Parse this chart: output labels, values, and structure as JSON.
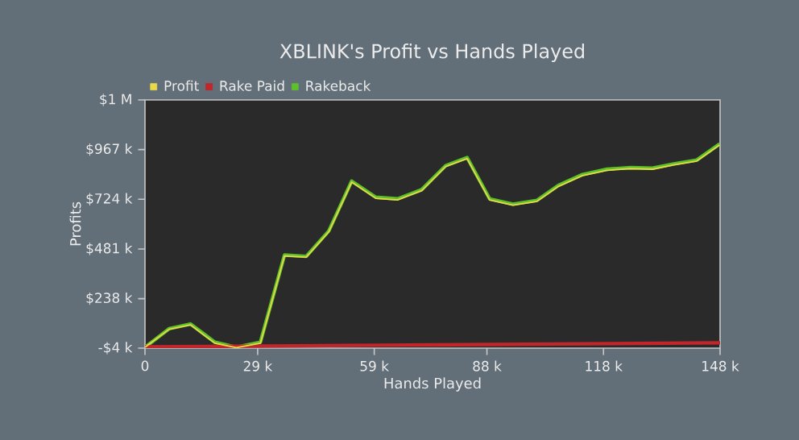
{
  "chart_data": {
    "type": "line",
    "title": "XBLINK's Profit vs Hands Played",
    "xlabel": "Hands Played",
    "ylabel": "Profits",
    "xlim": [
      0,
      148000
    ],
    "ylim": [
      -4000,
      1210000
    ],
    "xticks": [
      {
        "value": 0,
        "label": "0"
      },
      {
        "value": 29000,
        "label": "29 k"
      },
      {
        "value": 59000,
        "label": "59 k"
      },
      {
        "value": 88000,
        "label": "88 k"
      },
      {
        "value": 118000,
        "label": "118 k"
      },
      {
        "value": 148000,
        "label": "148 k"
      }
    ],
    "yticks": [
      {
        "value": -4000,
        "label": "-$4 k"
      },
      {
        "value": 238000,
        "label": "$238 k"
      },
      {
        "value": 481000,
        "label": "$481 k"
      },
      {
        "value": 724000,
        "label": "$724 k"
      },
      {
        "value": 967000,
        "label": "$967 k"
      },
      {
        "value": 1210000,
        "label": "$1 M"
      }
    ],
    "legend": "top",
    "marker": "none",
    "line_style": "solid",
    "series": [
      {
        "name": "Profit",
        "color": "#e8d84a",
        "x": [
          0,
          6200,
          11700,
          18000,
          23500,
          29700,
          35900,
          41500,
          47300,
          53200,
          59400,
          65000,
          71200,
          77400,
          82900,
          88700,
          94700,
          100900,
          106400,
          112600,
          118900,
          125000,
          130600,
          136100,
          142000,
          147900
        ],
        "values": [
          0,
          88000,
          110000,
          20000,
          -2000,
          20000,
          447000,
          441000,
          565000,
          808000,
          729000,
          721000,
          766000,
          884000,
          923000,
          721000,
          695000,
          714000,
          787000,
          840000,
          866000,
          874000,
          871000,
          892000,
          911000,
          990000
        ]
      },
      {
        "name": "Rake Paid",
        "color": "#c0262a",
        "x": [
          0,
          74000,
          148000
        ],
        "values": [
          2000,
          12000,
          22000
        ]
      },
      {
        "name": "Rakeback",
        "color": "#5cc02a",
        "x": [
          0,
          6200,
          11700,
          18000,
          23500,
          29700,
          35900,
          41500,
          47300,
          53200,
          59400,
          65000,
          71200,
          77400,
          82900,
          88700,
          94700,
          100900,
          106400,
          112600,
          118900,
          125000,
          130600,
          136100,
          142000,
          147900
        ],
        "values": [
          0,
          91000,
          114000,
          25000,
          0,
          25000,
          451000,
          445000,
          569000,
          813000,
          734000,
          726000,
          771000,
          889000,
          928000,
          726000,
          700000,
          719000,
          792000,
          845000,
          871000,
          879000,
          876000,
          897000,
          916000,
          995000
        ]
      }
    ]
  }
}
